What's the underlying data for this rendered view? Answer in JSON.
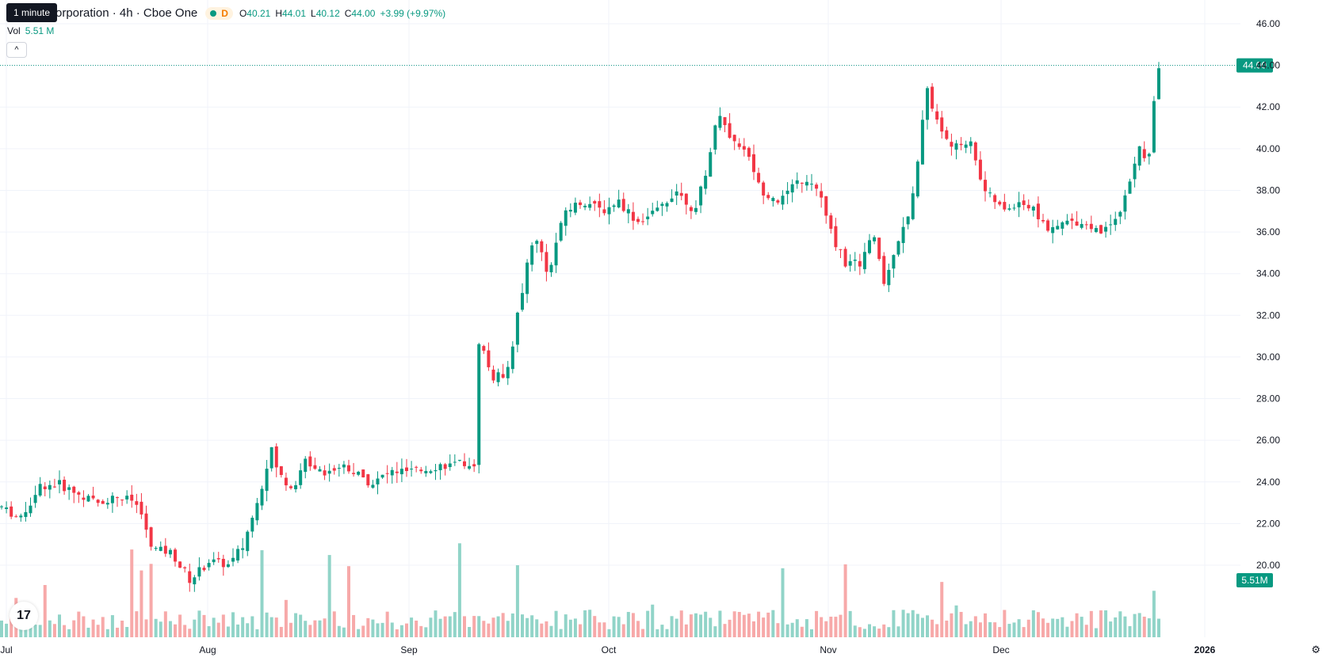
{
  "header": {
    "symbol_title": "orporation · 4h · Cboe One",
    "status_letter": "D",
    "ohlc": {
      "open_label": "O",
      "open": "40.21",
      "high_label": "H",
      "high": "44.01",
      "low_label": "L",
      "low": "40.12",
      "close_label": "C",
      "close": "44.00"
    },
    "change": "+3.99 (+9.97%)",
    "tooltip": "1 minute"
  },
  "volume": {
    "label": "Vol",
    "value": "5.51 M"
  },
  "collapse_glyph": "^",
  "logo_text": "17",
  "settings_glyph": "⚙",
  "colors": {
    "up": "#089981",
    "down": "#f23645",
    "vol_up": "#91d4c8",
    "vol_down": "#f7a9a9",
    "grid": "#f0f3fa",
    "axis_text": "#131722"
  },
  "chart_data": {
    "type": "candlestick",
    "y_axis": {
      "ticks": [
        "20.00",
        "22.00",
        "24.00",
        "26.00",
        "28.00",
        "30.00",
        "32.00",
        "34.00",
        "36.00",
        "38.00",
        "40.00",
        "42.00",
        "44.00",
        "46.00"
      ],
      "min": 18,
      "max": 46.5,
      "side": "right"
    },
    "x_axis": {
      "ticks": [
        "Jul",
        "Aug",
        "Sep",
        "Oct",
        "Nov",
        "Dec",
        "2026"
      ]
    },
    "last_price_label": "44.00",
    "last_volume_label": "5.51M",
    "price_line": 44.0,
    "grid": true
  }
}
